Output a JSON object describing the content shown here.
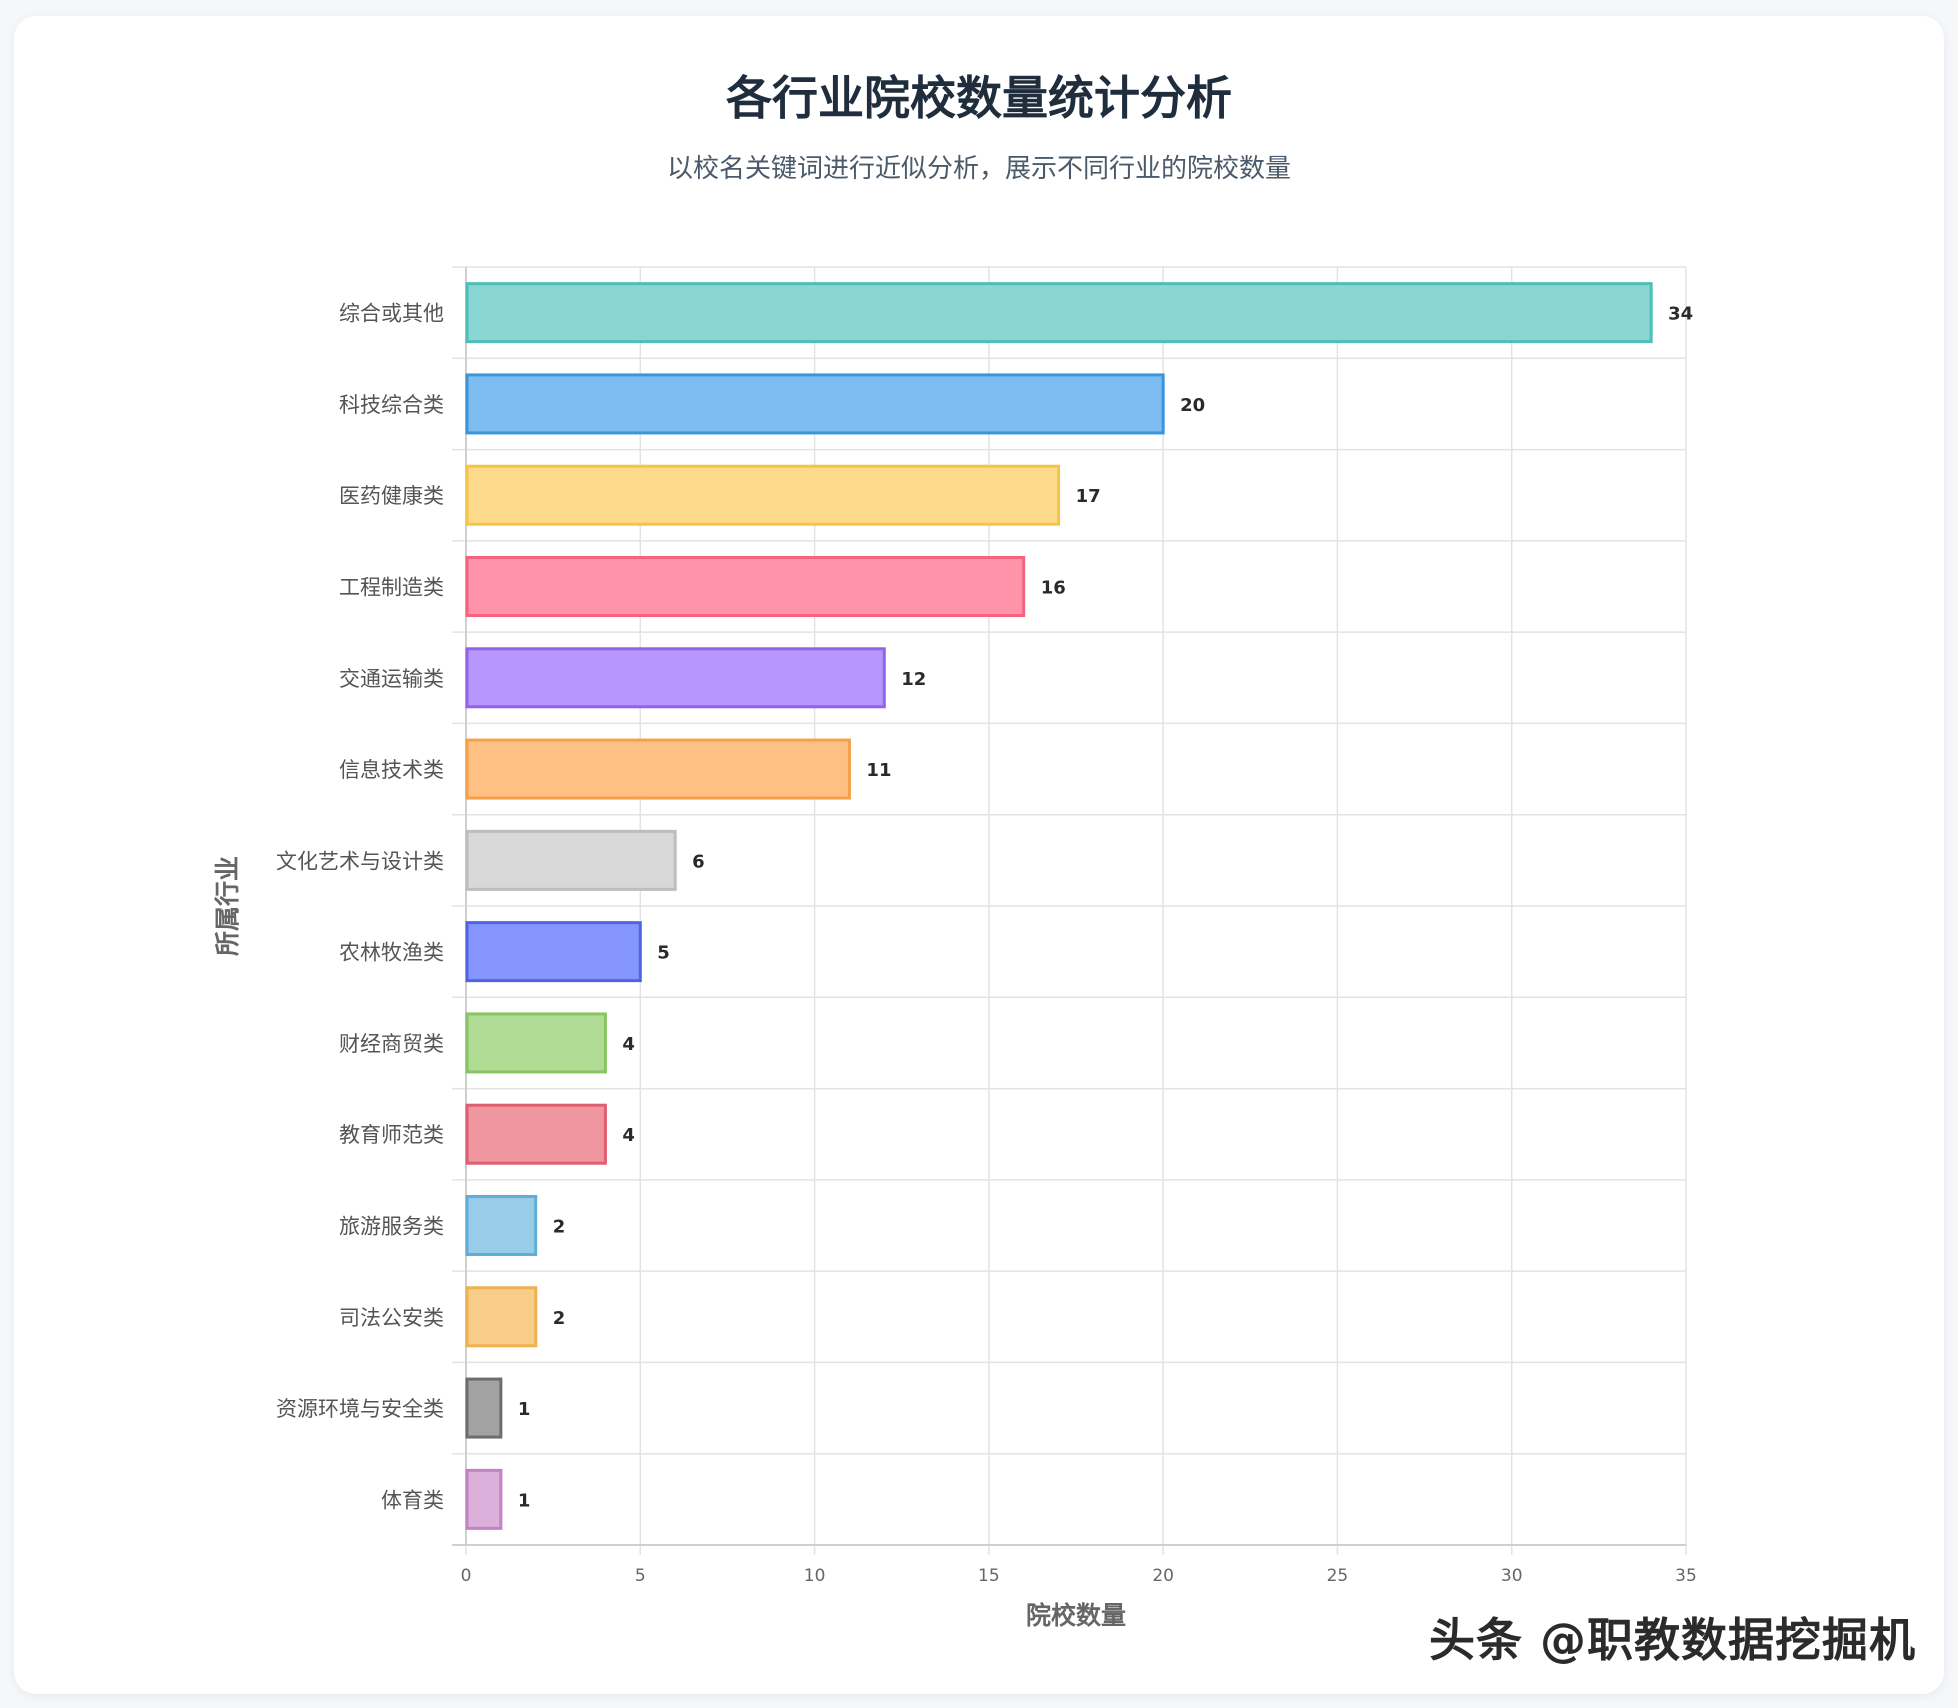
{
  "title": "各行业院校数量统计分析",
  "subtitle": "以校名关键词进行近似分析，展示不同行业的院校数量",
  "watermark": "头条 @职教数据挖掘机",
  "chart_data": {
    "type": "bar",
    "orientation": "horizontal",
    "xlabel": "院校数量",
    "ylabel": "所属行业",
    "xlim": [
      0,
      35
    ],
    "xticks": [
      0,
      5,
      10,
      15,
      20,
      25,
      30,
      35
    ],
    "grid": true,
    "categories": [
      "综合或其他",
      "科技综合类",
      "医药健康类",
      "工程制造类",
      "交通运输类",
      "信息技术类",
      "文化艺术与设计类",
      "农林牧渔类",
      "财经商贸类",
      "教育师范类",
      "旅游服务类",
      "司法公安类",
      "资源环境与安全类",
      "体育类"
    ],
    "values": [
      34,
      20,
      17,
      16,
      12,
      11,
      6,
      5,
      4,
      4,
      2,
      2,
      1,
      1
    ],
    "colors": [
      {
        "fill": "#8ad6d3",
        "stroke": "#4bbfb8"
      },
      {
        "fill": "#7ebdf2",
        "stroke": "#3a95da"
      },
      {
        "fill": "#fedb8c",
        "stroke": "#f4c545"
      },
      {
        "fill": "#ff93aa",
        "stroke": "#f5637f"
      },
      {
        "fill": "#b897fd",
        "stroke": "#9461ec"
      },
      {
        "fill": "#fec083",
        "stroke": "#f6a04a"
      },
      {
        "fill": "#d8d8d8",
        "stroke": "#bdbdbd"
      },
      {
        "fill": "#8496fd",
        "stroke": "#5063e4"
      },
      {
        "fill": "#b1dc95",
        "stroke": "#86c561"
      },
      {
        "fill": "#ef96a0",
        "stroke": "#de5f6e"
      },
      {
        "fill": "#98cce8",
        "stroke": "#5eaed8"
      },
      {
        "fill": "#f7cd89",
        "stroke": "#efb14f"
      },
      {
        "fill": "#a2a2a2",
        "stroke": "#6d6d6d"
      },
      {
        "fill": "#dbb1dc",
        "stroke": "#c283c4"
      }
    ]
  }
}
